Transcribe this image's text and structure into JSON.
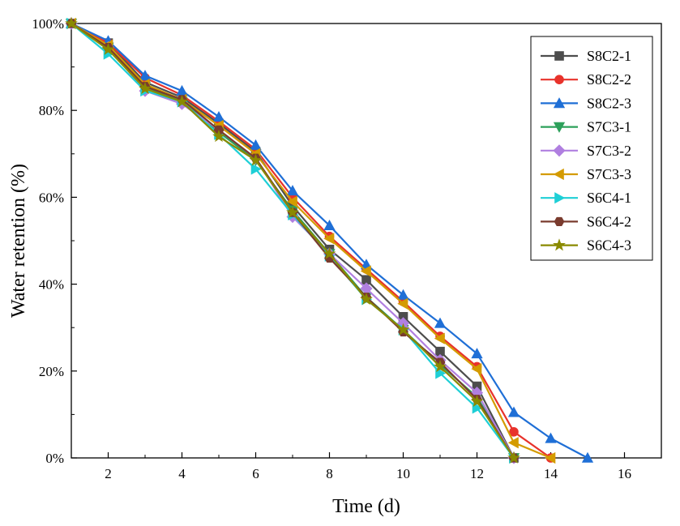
{
  "chart_data": {
    "type": "line",
    "title": "",
    "xlabel": "Time (d)",
    "ylabel": "Water retention (%)",
    "xlim": [
      1,
      17
    ],
    "ylim": [
      0,
      100
    ],
    "xticks": [
      2,
      4,
      6,
      8,
      10,
      12,
      14,
      16
    ],
    "xtick_labels": [
      "2",
      "4",
      "6",
      "8",
      "10",
      "12",
      "14",
      "16"
    ],
    "yticks": [
      0,
      20,
      40,
      60,
      80,
      100
    ],
    "ytick_labels": [
      "0%",
      "20%",
      "40%",
      "60%",
      "80%",
      "100%"
    ],
    "legend_position": "top-right",
    "series": [
      {
        "name": "S8C2-1",
        "color": "#4d4d4d",
        "marker": "square",
        "x": [
          1,
          2,
          3,
          4,
          5,
          6,
          7,
          8,
          9,
          10,
          11,
          12,
          13
        ],
        "y": [
          100,
          95.5,
          86.5,
          83,
          77,
          70.5,
          58,
          48,
          41,
          32.5,
          24.5,
          16.5,
          0
        ]
      },
      {
        "name": "S8C2-2",
        "color": "#e8322b",
        "marker": "circle",
        "x": [
          1,
          2,
          3,
          4,
          5,
          6,
          7,
          8,
          9,
          10,
          11,
          12,
          13,
          14
        ],
        "y": [
          100,
          95.5,
          87.5,
          83.5,
          77.5,
          71,
          60,
          51,
          43.5,
          36,
          28,
          21,
          6,
          0
        ]
      },
      {
        "name": "S8C2-3",
        "color": "#1f6fd6",
        "marker": "triangle-up",
        "x": [
          1,
          2,
          3,
          4,
          5,
          6,
          7,
          8,
          9,
          10,
          11,
          12,
          13,
          14,
          15
        ],
        "y": [
          100,
          96,
          88,
          84.5,
          78.5,
          72,
          61.5,
          53.5,
          44.5,
          37.5,
          31,
          24,
          10.5,
          4.5,
          0
        ]
      },
      {
        "name": "S7C3-1",
        "color": "#2ca05a",
        "marker": "triangle-down",
        "x": [
          1,
          2,
          3,
          4,
          5,
          6,
          7,
          8,
          9,
          10,
          11,
          12,
          13
        ],
        "y": [
          100,
          94.5,
          85.5,
          82,
          75,
          68.5,
          57,
          47,
          37,
          29.5,
          21.5,
          14,
          0
        ]
      },
      {
        "name": "S7C3-2",
        "color": "#b07fe0",
        "marker": "diamond",
        "x": [
          1,
          2,
          3,
          4,
          5,
          6,
          7,
          8,
          9,
          10,
          11,
          12,
          13
        ],
        "y": [
          100,
          94.5,
          84.5,
          81.5,
          75.5,
          69,
          55.5,
          47,
          39,
          31,
          22.5,
          15,
          0
        ]
      },
      {
        "name": "S7C3-3",
        "color": "#d49b00",
        "marker": "triangle-left",
        "x": [
          1,
          2,
          3,
          4,
          5,
          6,
          7,
          8,
          9,
          10,
          11,
          12,
          13,
          14
        ],
        "y": [
          100,
          95,
          86,
          82.5,
          76.5,
          70,
          59,
          50.5,
          43,
          35.5,
          27.5,
          20.5,
          3.5,
          0
        ]
      },
      {
        "name": "S6C4-1",
        "color": "#1ecfd6",
        "marker": "triangle-right",
        "x": [
          1,
          2,
          3,
          4,
          5,
          6,
          7,
          8,
          9,
          10,
          11,
          12,
          13
        ],
        "y": [
          100,
          93,
          84.5,
          82,
          74.5,
          66.5,
          56,
          46.5,
          36.5,
          29.5,
          19.5,
          11.5,
          0
        ]
      },
      {
        "name": "S6C4-2",
        "color": "#7a3b2e",
        "marker": "hexagon",
        "x": [
          1,
          2,
          3,
          4,
          5,
          6,
          7,
          8,
          9,
          10,
          11,
          12,
          13
        ],
        "y": [
          100,
          94.5,
          85.5,
          82.5,
          75.5,
          69,
          56.5,
          46,
          37,
          29,
          22,
          13.5,
          0
        ]
      },
      {
        "name": "S6C4-3",
        "color": "#8a8a00",
        "marker": "star",
        "x": [
          1,
          2,
          3,
          4,
          5,
          6,
          7,
          8,
          9,
          10,
          11,
          12,
          13
        ],
        "y": [
          100,
          94,
          85,
          82,
          74,
          68.5,
          56.5,
          47,
          36.5,
          29.5,
          21,
          13,
          0
        ]
      }
    ]
  }
}
